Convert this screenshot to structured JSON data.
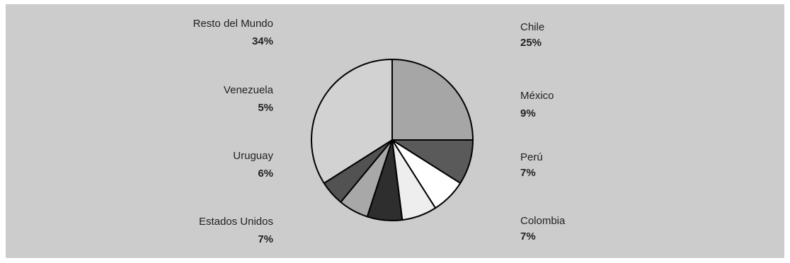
{
  "chart_data": {
    "type": "pie",
    "slices": [
      {
        "label": "Chile",
        "value": 25,
        "value_text": "25%",
        "color": "#a6a6a6"
      },
      {
        "label": "México",
        "value": 9,
        "value_text": "9%",
        "color": "#5a5a5a"
      },
      {
        "label": "Perú",
        "value": 7,
        "value_text": "7%",
        "color": "#ffffff"
      },
      {
        "label": "Colombia",
        "value": 7,
        "value_text": "7%",
        "color": "#eeeeee"
      },
      {
        "label": "Estados Unidos",
        "value": 7,
        "value_text": "7%",
        "color": "#2e2e2e"
      },
      {
        "label": "Uruguay",
        "value": 6,
        "value_text": "6%",
        "color": "#a8a8a8"
      },
      {
        "label": "Venezuela",
        "value": 5,
        "value_text": "5%",
        "color": "#525252"
      },
      {
        "label": "Resto del Mundo",
        "value": 34,
        "value_text": "34%",
        "color": "#d2d2d2"
      }
    ],
    "start_angle": "12 o'clock",
    "direction": "clockwise",
    "background": "#cccccc"
  }
}
